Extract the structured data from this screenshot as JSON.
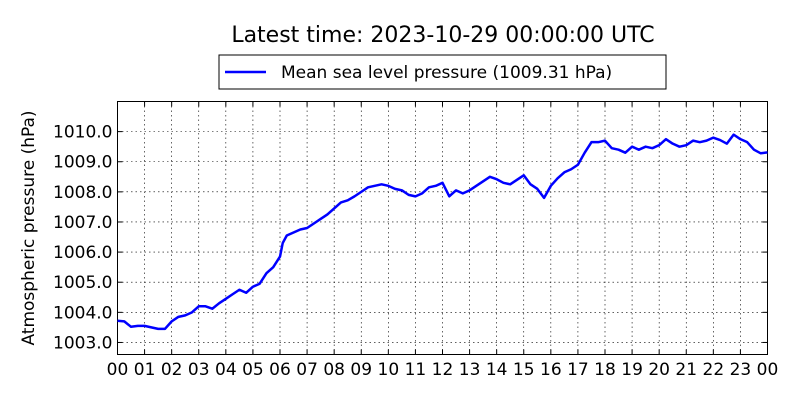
{
  "chart_data": {
    "type": "line",
    "title": "Latest time: 2023-10-29 00:00:00 UTC",
    "ylabel": "Atmospheric pressure (hPa)",
    "xlabel": "",
    "xlim": [
      0,
      24
    ],
    "ylim": [
      1002.6,
      1011.0
    ],
    "grid": true,
    "legend_position": "top-center",
    "x_ticks": [
      "00",
      "01",
      "02",
      "03",
      "04",
      "05",
      "06",
      "07",
      "08",
      "09",
      "10",
      "11",
      "12",
      "13",
      "14",
      "15",
      "16",
      "17",
      "18",
      "19",
      "20",
      "21",
      "22",
      "23",
      "00"
    ],
    "y_ticks": [
      {
        "value": 1003.0,
        "label": "1003.0"
      },
      {
        "value": 1004.0,
        "label": "1004.0"
      },
      {
        "value": 1005.0,
        "label": "1005.0"
      },
      {
        "value": 1006.0,
        "label": "1006.0"
      },
      {
        "value": 1007.0,
        "label": "1007.0"
      },
      {
        "value": 1008.0,
        "label": "1008.0"
      },
      {
        "value": 1009.0,
        "label": "1009.0"
      },
      {
        "value": 1010.0,
        "label": "1010.0"
      }
    ],
    "series": [
      {
        "name": "Mean sea level pressure (1009.31 hPa)",
        "color": "#0000ff",
        "x": [
          0,
          0.25,
          0.5,
          0.75,
          1,
          1.25,
          1.5,
          1.75,
          2,
          2.25,
          2.5,
          2.75,
          3,
          3.25,
          3.5,
          3.75,
          4,
          4.25,
          4.5,
          4.75,
          5,
          5.25,
          5.5,
          5.75,
          6,
          6.1,
          6.25,
          6.5,
          6.75,
          7,
          7.25,
          7.5,
          7.75,
          8,
          8.25,
          8.5,
          8.75,
          9,
          9.25,
          9.5,
          9.75,
          10,
          10.25,
          10.5,
          10.75,
          11,
          11.25,
          11.5,
          11.75,
          12,
          12.25,
          12.5,
          12.75,
          13,
          13.25,
          13.5,
          13.75,
          14,
          14.25,
          14.5,
          14.75,
          15,
          15.25,
          15.5,
          15.75,
          16,
          16.25,
          16.5,
          16.75,
          17,
          17.25,
          17.5,
          17.75,
          18,
          18.25,
          18.5,
          18.75,
          19,
          19.25,
          19.5,
          19.75,
          20,
          20.25,
          20.5,
          20.75,
          21,
          21.25,
          21.5,
          21.75,
          22,
          22.25,
          22.5,
          22.75,
          23,
          23.25,
          23.5,
          23.75,
          24
        ],
        "values": [
          1003.72,
          1003.7,
          1003.52,
          1003.55,
          1003.55,
          1003.5,
          1003.45,
          1003.45,
          1003.7,
          1003.85,
          1003.9,
          1004.0,
          1004.2,
          1004.2,
          1004.12,
          1004.3,
          1004.45,
          1004.6,
          1004.75,
          1004.65,
          1004.85,
          1004.95,
          1005.3,
          1005.5,
          1005.85,
          1006.3,
          1006.55,
          1006.65,
          1006.75,
          1006.8,
          1006.95,
          1007.1,
          1007.25,
          1007.45,
          1007.65,
          1007.72,
          1007.85,
          1008.0,
          1008.15,
          1008.2,
          1008.25,
          1008.2,
          1008.1,
          1008.05,
          1007.9,
          1007.85,
          1007.95,
          1008.15,
          1008.2,
          1008.3,
          1007.85,
          1008.05,
          1007.95,
          1008.05,
          1008.2,
          1008.35,
          1008.5,
          1008.42,
          1008.3,
          1008.25,
          1008.4,
          1008.55,
          1008.25,
          1008.1,
          1007.8,
          1008.2,
          1008.45,
          1008.65,
          1008.75,
          1008.9,
          1009.3,
          1009.65,
          1009.65,
          1009.7,
          1009.45,
          1009.4,
          1009.3,
          1009.5,
          1009.4,
          1009.5,
          1009.45,
          1009.55,
          1009.75,
          1009.6,
          1009.5,
          1009.55,
          1009.7,
          1009.65,
          1009.7,
          1009.8,
          1009.72,
          1009.6,
          1009.9,
          1009.75,
          1009.65,
          1009.4,
          1009.28,
          1009.31
        ]
      }
    ]
  }
}
